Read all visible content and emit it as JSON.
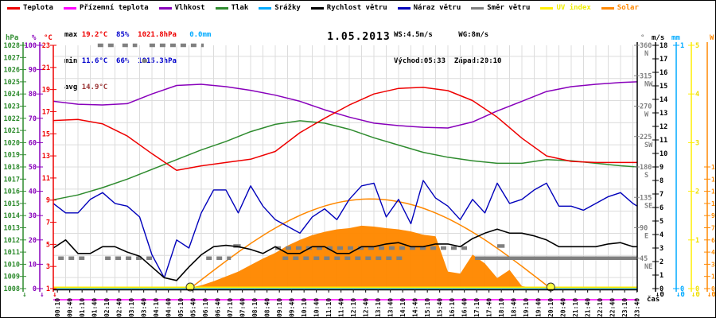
{
  "title": "1.05.2013",
  "legend": [
    {
      "label": "Teplota",
      "color": "#ee0000"
    },
    {
      "label": "Přízemní teplota",
      "color": "#ff00ff"
    },
    {
      "label": "Vlhkost",
      "color": "#8800bb"
    },
    {
      "label": "Tlak",
      "color": "#2e8b2e"
    },
    {
      "label": "Srážky",
      "color": "#00aaff"
    },
    {
      "label": "Rychlost větru",
      "color": "#000000"
    },
    {
      "label": "Náraz větru",
      "color": "#0000bb"
    },
    {
      "label": "Směr větru",
      "color": "#808080"
    },
    {
      "label": "UV index",
      "color": "#ffee00"
    },
    {
      "label": "Solar",
      "color": "#ff8800"
    }
  ],
  "stats": {
    "max": {
      "label": "max",
      "temp": "19.2°C",
      "hum": "85%",
      "pres": "1021.8hPa",
      "rain": "0.0mm"
    },
    "min": {
      "label": "min",
      "temp": "11.6°C",
      "hum": "66%",
      "pres": "1015.3hPa"
    },
    "avg": {
      "label": "avg",
      "temp": "14.9°C"
    },
    "colors": {
      "max_temp": "#ee0000",
      "max_pres": "#ee0000",
      "min_vals": "#0000cc",
      "hum_max": "#0000cc",
      "rain": "#00aaff",
      "avg_temp": "#993333",
      "label": "#000000"
    }
  },
  "wind_info": {
    "ws": "WS:4.5m/s",
    "wg": "WG:8m/s",
    "sunrise": "Východ:05:33",
    "sunset": "Západ:20:10"
  },
  "xaxis": {
    "label": "čas",
    "labels": [
      "00:10",
      "00:40",
      "01:10",
      "01:40",
      "02:10",
      "02:40",
      "03:10",
      "03:40",
      "04:10",
      "04:40",
      "05:10",
      "05:40",
      "06:10",
      "06:40",
      "07:10",
      "07:40",
      "08:10",
      "08:40",
      "09:10",
      "09:40",
      "10:10",
      "10:40",
      "11:10",
      "11:40",
      "12:10",
      "12:40",
      "13:10",
      "13:40",
      "14:10",
      "14:40",
      "15:10",
      "15:40",
      "16:10",
      "16:40",
      "17:10",
      "17:40",
      "18:10",
      "18:40",
      "19:10",
      "19:40",
      "20:10",
      "20:40",
      "21:10",
      "21:40",
      "22:10",
      "22:40",
      "23:10",
      "23:40"
    ]
  },
  "axes": {
    "hpa": {
      "unit": "hPa",
      "color": "#2e8b2e",
      "min": 1008,
      "max": 1028,
      "step": 1
    },
    "pct": {
      "unit": "%",
      "color": "#8800bb",
      "min": 0,
      "max": 100,
      "step": 10
    },
    "degc": {
      "unit": "°C",
      "color": "#ee0000",
      "min": 1,
      "max": 23,
      "step": 2
    },
    "wdir": {
      "unit": "°",
      "color": "#808080",
      "min": 0,
      "max": 360,
      "ticks": [
        {
          "v": 360,
          "t": "N"
        },
        {
          "v": 315,
          "t": "NW"
        },
        {
          "v": 270,
          "t": "W"
        },
        {
          "v": 225,
          "t": "SW"
        },
        {
          "v": 180,
          "t": "S"
        },
        {
          "v": 135,
          "t": "SE"
        },
        {
          "v": 90,
          "t": "E"
        },
        {
          "v": 45,
          "t": "NE"
        }
      ]
    },
    "ms": {
      "unit": "m/s",
      "color": "#000000",
      "min": 0,
      "max": 18,
      "step": 1
    },
    "mm": {
      "unit": "mm",
      "color": "#00aaff",
      "min": 0,
      "max": 1,
      "step": 1
    },
    "uv": {
      "unit": "",
      "color": "#eedd00",
      "min": 0,
      "max": 5,
      "step": 1
    },
    "w": {
      "unit": "W",
      "color": "#ff8800",
      "min": 0,
      "max": 3000,
      "label_max": 1500,
      "step": 150
    }
  },
  "end_markers": {
    "left": [
      {
        "color": "#2e8b2e",
        "text": "↓"
      },
      {
        "color": "#8800bb",
        "text": "↓"
      },
      {
        "color": "#ee0000",
        "text": "↓"
      }
    ],
    "right": [
      {
        "color": "#000000",
        "text": "↓0"
      },
      {
        "color": "#00aaff",
        "text": "↓0"
      },
      {
        "color": "#eedd00",
        "text": "↓0"
      },
      {
        "color": "#ff8800",
        "text": "↓0"
      }
    ]
  },
  "chart_data": {
    "type": "line",
    "title": "1.05.2013",
    "x_unit": "hours",
    "x_range": [
      0,
      24
    ],
    "grid": true,
    "sun": {
      "sunrise_h": 5.55,
      "sunset_h": 20.17,
      "clear_sky_peak_w": 1105
    },
    "series": [
      {
        "name": "Teplota",
        "unit": "°C",
        "axis": "degc",
        "color": "#ee0000",
        "x": [
          0,
          1,
          2,
          3,
          4,
          5,
          6,
          7,
          8,
          9,
          10,
          11,
          12,
          13,
          14,
          15,
          16,
          17,
          18,
          19,
          20,
          21,
          22,
          23,
          23.7
        ],
        "values": [
          16.2,
          16.3,
          15.9,
          14.8,
          13.2,
          11.7,
          12.1,
          12.4,
          12.7,
          13.4,
          15.1,
          16.4,
          17.6,
          18.6,
          19.1,
          19.2,
          18.9,
          18.0,
          16.5,
          14.6,
          13.0,
          12.5,
          12.4,
          12.4,
          12.4
        ]
      },
      {
        "name": "Přízemní teplota",
        "unit": "°C",
        "axis": "degc",
        "color": "#ff00ff",
        "note": "constant line drawn below axis",
        "x": [
          0,
          23.7
        ],
        "values": [
          0,
          0
        ]
      },
      {
        "name": "Vlhkost",
        "unit": "%",
        "axis": "pct",
        "color": "#8800bb",
        "x": [
          0,
          1,
          2,
          3,
          4,
          5,
          6,
          7,
          8,
          9,
          10,
          11,
          12,
          13,
          14,
          15,
          16,
          17,
          18,
          19,
          20,
          21,
          22,
          23,
          23.7
        ],
        "values": [
          77,
          75.8,
          75.5,
          76,
          80,
          83.5,
          84,
          83,
          81.5,
          79.5,
          77,
          73.5,
          70.5,
          68,
          67,
          66.3,
          66,
          68.5,
          73,
          77,
          81,
          83,
          84,
          84.7,
          85
        ]
      },
      {
        "name": "Tlak",
        "unit": "hPa",
        "axis": "hpa",
        "color": "#2e8b2e",
        "x": [
          0,
          1,
          2,
          3,
          4,
          5,
          6,
          7,
          8,
          9,
          10,
          11,
          12,
          13,
          14,
          15,
          16,
          17,
          18,
          19,
          20,
          21,
          22,
          23,
          23.7
        ],
        "values": [
          1015.3,
          1015.7,
          1016.3,
          1017.0,
          1017.8,
          1018.6,
          1019.4,
          1020.1,
          1020.9,
          1021.5,
          1021.8,
          1021.6,
          1021.1,
          1020.4,
          1019.8,
          1019.2,
          1018.8,
          1018.5,
          1018.3,
          1018.3,
          1018.6,
          1018.5,
          1018.3,
          1018.1,
          1018.0
        ]
      },
      {
        "name": "Srážky",
        "unit": "mm",
        "axis": "mm",
        "color": "#00aaff",
        "x": [
          0,
          23.7
        ],
        "values": [
          0,
          0
        ]
      },
      {
        "name": "Rychlost větru",
        "unit": "m/s",
        "axis": "ms",
        "color": "#000000",
        "x": [
          0,
          0.5,
          1,
          1.5,
          2,
          2.5,
          3,
          3.5,
          4,
          4.5,
          5,
          5.5,
          6,
          6.5,
          7,
          7.5,
          8,
          8.5,
          9,
          9.5,
          10,
          10.5,
          11,
          11.5,
          12,
          12.5,
          13,
          13.5,
          14,
          14.5,
          15,
          15.5,
          16,
          16.5,
          17,
          17.5,
          18,
          18.5,
          19,
          19.5,
          20,
          20.5,
          21,
          21.5,
          22,
          22.5,
          23,
          23.5,
          23.7
        ],
        "values": [
          3.0,
          3.6,
          2.6,
          2.6,
          3.1,
          3.1,
          2.7,
          2.4,
          1.6,
          0.8,
          0.6,
          1.6,
          2.5,
          3.1,
          3.2,
          3.1,
          2.9,
          2.6,
          3.1,
          2.6,
          2.6,
          3.1,
          3.1,
          2.6,
          2.6,
          3.1,
          3.1,
          3.3,
          3.4,
          3.1,
          3.1,
          3.3,
          3.3,
          3.1,
          3.7,
          4.1,
          4.4,
          4.1,
          4.1,
          3.9,
          3.6,
          3.1,
          3.1,
          3.1,
          3.1,
          3.3,
          3.4,
          3.1,
          3.1
        ]
      },
      {
        "name": "Náraz větru",
        "unit": "m/s",
        "axis": "ms",
        "color": "#0000bb",
        "x": [
          0,
          0.5,
          1,
          1.5,
          2,
          2.5,
          3,
          3.5,
          4,
          4.5,
          5,
          5.5,
          6,
          6.5,
          7,
          7.5,
          8,
          8.5,
          9,
          9.5,
          10,
          10.5,
          11,
          11.5,
          12,
          12.5,
          13,
          13.5,
          14,
          14.5,
          15,
          15.5,
          16,
          16.5,
          17,
          17.5,
          18,
          18.5,
          19,
          19.5,
          20,
          20.5,
          21,
          21.5,
          22,
          22.5,
          23,
          23.5,
          23.7
        ],
        "values": [
          6.3,
          5.6,
          5.6,
          6.6,
          7.1,
          6.3,
          6.1,
          5.3,
          2.5,
          0.8,
          3.6,
          3.0,
          5.6,
          7.3,
          7.3,
          5.6,
          7.6,
          6.1,
          5.1,
          4.6,
          4.1,
          5.3,
          5.9,
          5.1,
          6.6,
          7.6,
          7.8,
          5.3,
          6.6,
          4.8,
          8.0,
          6.7,
          6.1,
          5.1,
          6.6,
          5.6,
          7.8,
          6.3,
          6.6,
          7.3,
          7.8,
          6.1,
          6.1,
          5.8,
          6.3,
          6.8,
          7.1,
          6.3,
          6.1
        ]
      },
      {
        "name": "Směr větru",
        "unit": "°",
        "axis": "wdir",
        "color": "#808080",
        "segments": [
          {
            "from": 0.2,
            "to": 1.4,
            "deg": 45,
            "dash": true
          },
          {
            "from": 1.8,
            "to": 2.5,
            "deg": 360,
            "dash": true
          },
          {
            "from": 2.1,
            "to": 4.0,
            "deg": 45,
            "dash": true
          },
          {
            "from": 2.8,
            "to": 3.4,
            "deg": 360,
            "dash": true
          },
          {
            "from": 3.6,
            "to": 3.8,
            "deg": 337,
            "dash": false
          },
          {
            "from": 3.9,
            "to": 6.1,
            "deg": 360,
            "dash": true
          },
          {
            "from": 6.2,
            "to": 7.2,
            "deg": 45,
            "dash": true
          },
          {
            "from": 7.3,
            "to": 7.6,
            "deg": 63,
            "dash": false
          },
          {
            "from": 9.0,
            "to": 16.8,
            "deg": 60,
            "dash": true
          },
          {
            "from": 9.3,
            "to": 14.2,
            "deg": 45,
            "dash": true
          },
          {
            "from": 18.0,
            "to": 18.3,
            "deg": 63,
            "dash": false
          },
          {
            "from": 17.1,
            "to": 23.7,
            "deg": 45,
            "dash": false
          }
        ]
      },
      {
        "name": "UV index",
        "unit": "",
        "axis": "uv",
        "color": "#ffee00",
        "x": [
          0,
          23.7
        ],
        "values": [
          0,
          0
        ]
      },
      {
        "name": "Solar",
        "unit": "W",
        "axis": "w",
        "color": "#ff8800",
        "style": "area",
        "x": [
          5,
          5.5,
          6,
          6.5,
          7,
          7.5,
          8,
          8.5,
          9,
          9.5,
          10,
          10.5,
          11,
          11.5,
          12,
          12.5,
          13,
          13.5,
          14,
          14.5,
          15,
          15.5,
          16,
          16.5,
          17,
          17.5,
          18,
          18.5,
          19,
          19.5,
          20
        ],
        "values": [
          0,
          10,
          40,
          90,
          150,
          210,
          290,
          370,
          440,
          530,
          600,
          660,
          700,
          730,
          745,
          775,
          765,
          745,
          730,
          705,
          665,
          645,
          210,
          185,
          420,
          310,
          130,
          230,
          30,
          10,
          0
        ]
      }
    ]
  }
}
